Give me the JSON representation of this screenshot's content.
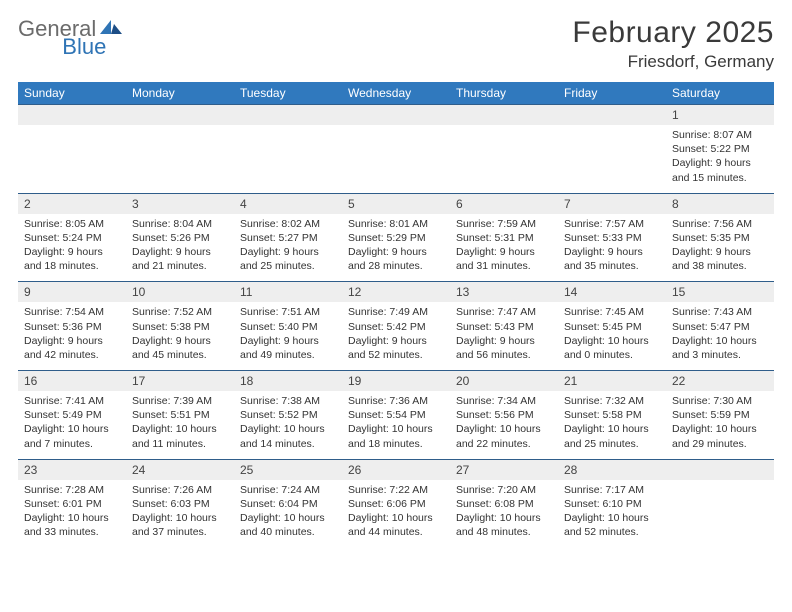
{
  "logo": {
    "general": "General",
    "blue": "Blue"
  },
  "title": "February 2025",
  "location": "Friesdorf, Germany",
  "colors": {
    "header_bg": "#3079be",
    "header_text": "#ffffff",
    "daynum_bg": "#eeeeee",
    "row_border": "#2f5d8a",
    "logo_general": "#6b6b6b",
    "logo_blue": "#2f74b5",
    "text": "#333333"
  },
  "day_labels": [
    "Sunday",
    "Monday",
    "Tuesday",
    "Wednesday",
    "Thursday",
    "Friday",
    "Saturday"
  ],
  "weeks": [
    [
      null,
      null,
      null,
      null,
      null,
      null,
      {
        "n": "1",
        "sunrise": "Sunrise: 8:07 AM",
        "sunset": "Sunset: 5:22 PM",
        "daylight": "Daylight: 9 hours and 15 minutes."
      }
    ],
    [
      {
        "n": "2",
        "sunrise": "Sunrise: 8:05 AM",
        "sunset": "Sunset: 5:24 PM",
        "daylight": "Daylight: 9 hours and 18 minutes."
      },
      {
        "n": "3",
        "sunrise": "Sunrise: 8:04 AM",
        "sunset": "Sunset: 5:26 PM",
        "daylight": "Daylight: 9 hours and 21 minutes."
      },
      {
        "n": "4",
        "sunrise": "Sunrise: 8:02 AM",
        "sunset": "Sunset: 5:27 PM",
        "daylight": "Daylight: 9 hours and 25 minutes."
      },
      {
        "n": "5",
        "sunrise": "Sunrise: 8:01 AM",
        "sunset": "Sunset: 5:29 PM",
        "daylight": "Daylight: 9 hours and 28 minutes."
      },
      {
        "n": "6",
        "sunrise": "Sunrise: 7:59 AM",
        "sunset": "Sunset: 5:31 PM",
        "daylight": "Daylight: 9 hours and 31 minutes."
      },
      {
        "n": "7",
        "sunrise": "Sunrise: 7:57 AM",
        "sunset": "Sunset: 5:33 PM",
        "daylight": "Daylight: 9 hours and 35 minutes."
      },
      {
        "n": "8",
        "sunrise": "Sunrise: 7:56 AM",
        "sunset": "Sunset: 5:35 PM",
        "daylight": "Daylight: 9 hours and 38 minutes."
      }
    ],
    [
      {
        "n": "9",
        "sunrise": "Sunrise: 7:54 AM",
        "sunset": "Sunset: 5:36 PM",
        "daylight": "Daylight: 9 hours and 42 minutes."
      },
      {
        "n": "10",
        "sunrise": "Sunrise: 7:52 AM",
        "sunset": "Sunset: 5:38 PM",
        "daylight": "Daylight: 9 hours and 45 minutes."
      },
      {
        "n": "11",
        "sunrise": "Sunrise: 7:51 AM",
        "sunset": "Sunset: 5:40 PM",
        "daylight": "Daylight: 9 hours and 49 minutes."
      },
      {
        "n": "12",
        "sunrise": "Sunrise: 7:49 AM",
        "sunset": "Sunset: 5:42 PM",
        "daylight": "Daylight: 9 hours and 52 minutes."
      },
      {
        "n": "13",
        "sunrise": "Sunrise: 7:47 AM",
        "sunset": "Sunset: 5:43 PM",
        "daylight": "Daylight: 9 hours and 56 minutes."
      },
      {
        "n": "14",
        "sunrise": "Sunrise: 7:45 AM",
        "sunset": "Sunset: 5:45 PM",
        "daylight": "Daylight: 10 hours and 0 minutes."
      },
      {
        "n": "15",
        "sunrise": "Sunrise: 7:43 AM",
        "sunset": "Sunset: 5:47 PM",
        "daylight": "Daylight: 10 hours and 3 minutes."
      }
    ],
    [
      {
        "n": "16",
        "sunrise": "Sunrise: 7:41 AM",
        "sunset": "Sunset: 5:49 PM",
        "daylight": "Daylight: 10 hours and 7 minutes."
      },
      {
        "n": "17",
        "sunrise": "Sunrise: 7:39 AM",
        "sunset": "Sunset: 5:51 PM",
        "daylight": "Daylight: 10 hours and 11 minutes."
      },
      {
        "n": "18",
        "sunrise": "Sunrise: 7:38 AM",
        "sunset": "Sunset: 5:52 PM",
        "daylight": "Daylight: 10 hours and 14 minutes."
      },
      {
        "n": "19",
        "sunrise": "Sunrise: 7:36 AM",
        "sunset": "Sunset: 5:54 PM",
        "daylight": "Daylight: 10 hours and 18 minutes."
      },
      {
        "n": "20",
        "sunrise": "Sunrise: 7:34 AM",
        "sunset": "Sunset: 5:56 PM",
        "daylight": "Daylight: 10 hours and 22 minutes."
      },
      {
        "n": "21",
        "sunrise": "Sunrise: 7:32 AM",
        "sunset": "Sunset: 5:58 PM",
        "daylight": "Daylight: 10 hours and 25 minutes."
      },
      {
        "n": "22",
        "sunrise": "Sunrise: 7:30 AM",
        "sunset": "Sunset: 5:59 PM",
        "daylight": "Daylight: 10 hours and 29 minutes."
      }
    ],
    [
      {
        "n": "23",
        "sunrise": "Sunrise: 7:28 AM",
        "sunset": "Sunset: 6:01 PM",
        "daylight": "Daylight: 10 hours and 33 minutes."
      },
      {
        "n": "24",
        "sunrise": "Sunrise: 7:26 AM",
        "sunset": "Sunset: 6:03 PM",
        "daylight": "Daylight: 10 hours and 37 minutes."
      },
      {
        "n": "25",
        "sunrise": "Sunrise: 7:24 AM",
        "sunset": "Sunset: 6:04 PM",
        "daylight": "Daylight: 10 hours and 40 minutes."
      },
      {
        "n": "26",
        "sunrise": "Sunrise: 7:22 AM",
        "sunset": "Sunset: 6:06 PM",
        "daylight": "Daylight: 10 hours and 44 minutes."
      },
      {
        "n": "27",
        "sunrise": "Sunrise: 7:20 AM",
        "sunset": "Sunset: 6:08 PM",
        "daylight": "Daylight: 10 hours and 48 minutes."
      },
      {
        "n": "28",
        "sunrise": "Sunrise: 7:17 AM",
        "sunset": "Sunset: 6:10 PM",
        "daylight": "Daylight: 10 hours and 52 minutes."
      },
      null
    ]
  ]
}
